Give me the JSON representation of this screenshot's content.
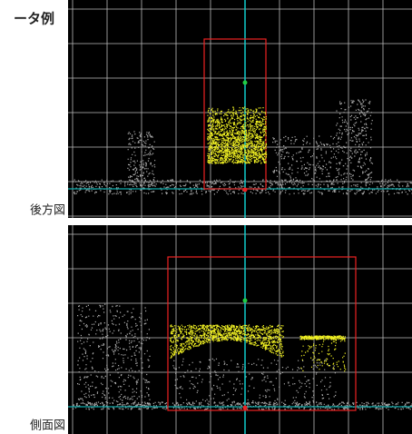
{
  "header": {
    "title": "ータ例"
  },
  "views": [
    {
      "label": "後方図"
    },
    {
      "label": "側面図"
    }
  ]
}
